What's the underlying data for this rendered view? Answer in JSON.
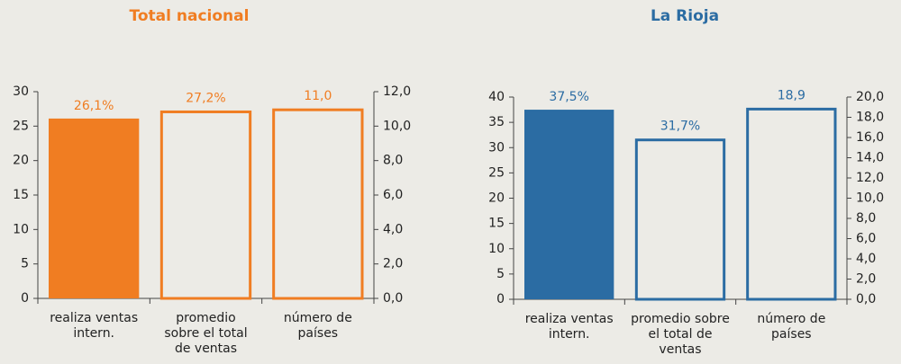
{
  "chart_data": [
    {
      "type": "bar",
      "title": "Total nacional",
      "color": "#f07d22",
      "categories": [
        [
          "realiza ventas",
          "intern."
        ],
        [
          "promedio",
          "sobre el total",
          "de ventas"
        ],
        [
          "número de",
          "países"
        ]
      ],
      "series": [
        {
          "values": [
            26.1,
            27.2,
            null
          ],
          "value_labels": [
            "26,1%",
            "27,2%",
            null
          ]
        },
        {
          "axis": "y2",
          "values": [
            null,
            null,
            11.0
          ],
          "value_labels": [
            null,
            null,
            "11,0"
          ]
        }
      ],
      "ylim": [
        0,
        30
      ],
      "yticks": [
        0,
        5,
        10,
        15,
        20,
        25,
        30
      ],
      "y2lim": [
        0,
        12
      ],
      "y2ticks": [
        {
          "value": 0,
          "label": "0,0"
        },
        {
          "value": 2,
          "label": "2,0"
        },
        {
          "value": 4,
          "label": "4,0"
        },
        {
          "value": 6,
          "label": "6,0"
        },
        {
          "value": 8,
          "label": "8,0"
        },
        {
          "value": 10,
          "label": "10,0"
        },
        {
          "value": 12,
          "label": "12,0"
        }
      ]
    },
    {
      "type": "bar",
      "title": "La Rioja",
      "color": "#2b6ca3",
      "categories": [
        [
          "realiza ventas",
          "intern."
        ],
        [
          "promedio sobre",
          "el total de",
          "ventas"
        ],
        [
          "número de",
          "países"
        ]
      ],
      "series": [
        {
          "values": [
            37.5,
            31.7,
            null
          ],
          "value_labels": [
            "37,5%",
            "31,7%",
            null
          ]
        },
        {
          "axis": "y2",
          "values": [
            null,
            null,
            18.9
          ],
          "value_labels": [
            null,
            null,
            "18,9"
          ]
        }
      ],
      "ylim": [
        0,
        40
      ],
      "yticks": [
        0,
        5,
        10,
        15,
        20,
        25,
        30,
        35,
        40
      ],
      "y2lim": [
        0,
        20
      ],
      "y2ticks": [
        {
          "value": 0,
          "label": "0,0"
        },
        {
          "value": 2,
          "label": "2,0"
        },
        {
          "value": 4,
          "label": "4,0"
        },
        {
          "value": 6,
          "label": "6,0"
        },
        {
          "value": 8,
          "label": "8,0"
        },
        {
          "value": 10,
          "label": "10,0"
        },
        {
          "value": 12,
          "label": "12,0"
        },
        {
          "value": 14,
          "label": "14,0"
        },
        {
          "value": 16,
          "label": "16,0"
        },
        {
          "value": 18,
          "label": "18,0"
        },
        {
          "value": 20,
          "label": "20,0"
        }
      ]
    }
  ]
}
